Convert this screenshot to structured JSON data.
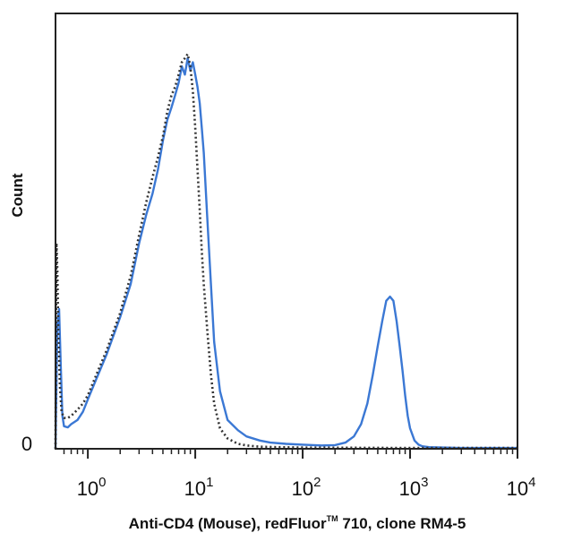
{
  "chart_data": {
    "type": "line",
    "title": "",
    "xlabel": "Anti-CD4 (Mouse), redFluor™ 710, clone RM4-5",
    "xlabel_parts": {
      "pre": "Anti-CD4 (Mouse), redFluor",
      "tm": "TM",
      "post": " 710, clone RM4-5"
    },
    "ylabel": "Count",
    "x_scale": "log",
    "xlim": [
      0.5,
      10000
    ],
    "ylim": [
      0,
      100
    ],
    "y_zero_label": "0",
    "x_ticks": [
      {
        "value": 1,
        "base": "10",
        "exp": "0"
      },
      {
        "value": 10,
        "base": "10",
        "exp": "1"
      },
      {
        "value": 100,
        "base": "10",
        "exp": "2"
      },
      {
        "value": 1000,
        "base": "10",
        "exp": "3"
      },
      {
        "value": 10000,
        "base": "10",
        "exp": "4"
      }
    ],
    "grid": false,
    "legend": "none",
    "series": [
      {
        "style": "solid",
        "color": "#3b78d4",
        "x": [
          0.5,
          0.52,
          0.54,
          0.56,
          0.58,
          0.6,
          0.65,
          0.7,
          0.8,
          0.9,
          1.0,
          1.2,
          1.5,
          2,
          2.5,
          3,
          3.5,
          4,
          4.5,
          5,
          5.5,
          6,
          6.5,
          7,
          7.5,
          8,
          8.5,
          9,
          9.5,
          10,
          10.5,
          11,
          11.5,
          12,
          13,
          14,
          15,
          17,
          20,
          25,
          30,
          40,
          50,
          70,
          100,
          150,
          200,
          250,
          300,
          350,
          400,
          450,
          500,
          550,
          600,
          650,
          700,
          750,
          800,
          850,
          900,
          950,
          1000,
          1100,
          1200,
          1300,
          1500,
          2000,
          3000,
          5000,
          10000
        ],
        "y": [
          0,
          30,
          34,
          20,
          8,
          5.5,
          5.2,
          6,
          7,
          9,
          12,
          17,
          23,
          32,
          40,
          50,
          57,
          62,
          68,
          75,
          80,
          83,
          86,
          89,
          93,
          91,
          95,
          92,
          94,
          91,
          88,
          84,
          78,
          72,
          55,
          40,
          26,
          14,
          7,
          4.5,
          3,
          2,
          1.5,
          1.2,
          1,
          0.8,
          0.9,
          1.5,
          3,
          6,
          11,
          18,
          25,
          31,
          36,
          37,
          36,
          31,
          25,
          19,
          13,
          8,
          5,
          2,
          1,
          0.6,
          0.4,
          0.3,
          0.2,
          0.2,
          0.2
        ]
      },
      {
        "style": "dotted",
        "color": "#333333",
        "x": [
          0.5,
          0.51,
          0.52,
          0.53,
          0.55,
          0.57,
          0.6,
          0.65,
          0.7,
          0.8,
          0.9,
          1.0,
          1.2,
          1.5,
          2,
          2.5,
          3,
          3.5,
          4,
          4.5,
          5,
          5.5,
          6,
          6.5,
          7,
          7.5,
          8,
          8.5,
          9,
          9.5,
          10,
          10.5,
          11,
          11.5,
          12,
          13,
          14,
          15,
          17,
          20,
          25,
          30,
          40,
          60,
          100,
          1000,
          10000
        ],
        "y": [
          0,
          50,
          44,
          30,
          15,
          9,
          7.5,
          7.5,
          8,
          9.5,
          11,
          13,
          18,
          24,
          33,
          42,
          52,
          60,
          66,
          71,
          76,
          82,
          86,
          88,
          91,
          94,
          95,
          96,
          93,
          87,
          78,
          68,
          58,
          48,
          40,
          28,
          18,
          11,
          5,
          2.5,
          1.2,
          0.8,
          0.5,
          0.4,
          0.3,
          0.2,
          0.2
        ]
      }
    ]
  }
}
